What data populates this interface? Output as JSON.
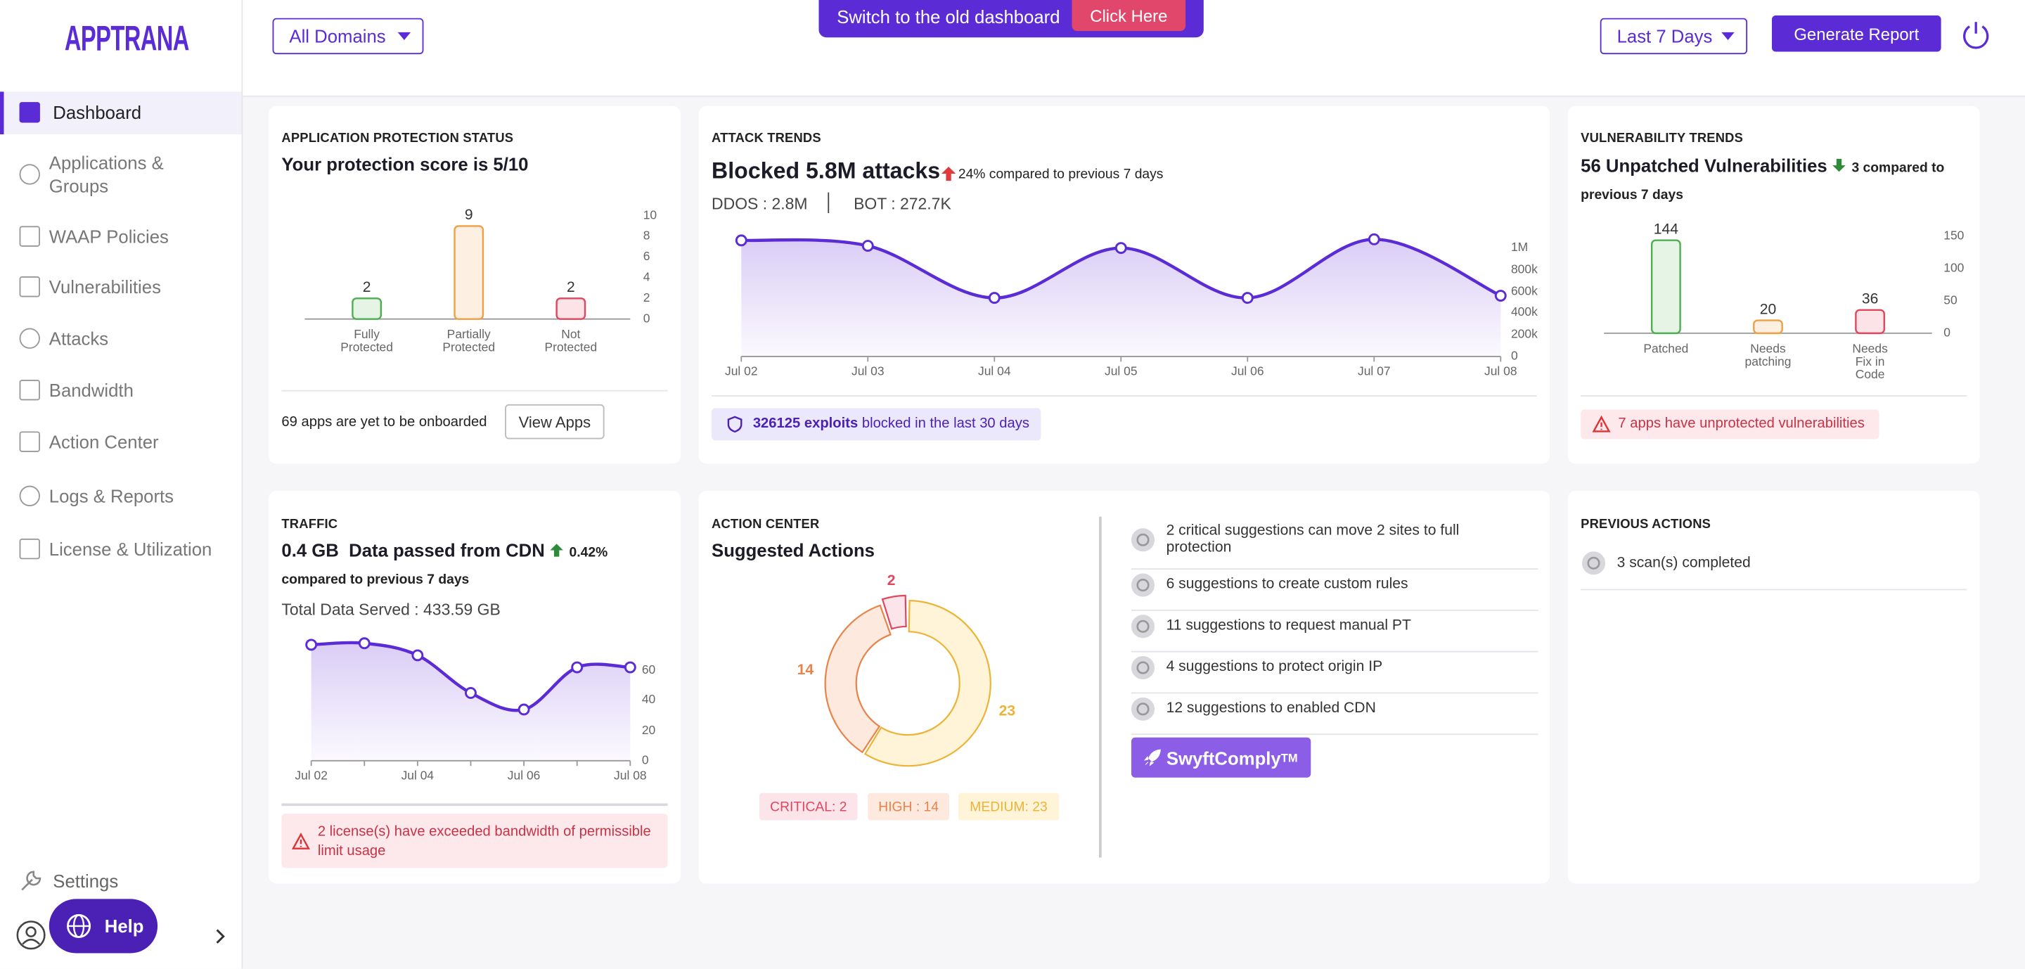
{
  "sidebar": {
    "logo": "APPTRANA",
    "nav": [
      "Dashboard",
      "Applications & Groups",
      "WAAP Policies",
      "Vulnerabilities",
      "Attacks",
      "Bandwidth",
      "Action Center",
      "Logs & Reports",
      "License & Utilization"
    ],
    "settings": "Settings",
    "help": "Help"
  },
  "header": {
    "domain_filter": "All Domains",
    "banner": "Switch to the old dashboard",
    "banner_button": "Click Here",
    "date_filter": "Last 7 Days",
    "report_button": "Generate Report"
  },
  "protection": {
    "label": "APPLICATION PROTECTION STATUS",
    "title": "Your protection score is 5/10",
    "chart": {
      "type": "bar",
      "categories": [
        "Fully Protected",
        "Partially Protected",
        "Not Protected"
      ],
      "values": [
        2,
        9,
        2
      ],
      "colors": [
        "#4caf50",
        "#f0a042",
        "#e0475f"
      ],
      "fill_colors": [
        "#e6f4e6",
        "#fdf0e2",
        "#fbe3e7"
      ],
      "ylim": [
        0,
        10
      ],
      "yticks": [
        0,
        2,
        4,
        6,
        8,
        10
      ]
    },
    "onboard_note": "69 apps are yet to be onboarded",
    "view_button": "View Apps"
  },
  "attacks": {
    "label": "ATTACK TRENDS",
    "title": "Blocked 5.8M attacks",
    "delta": "24% compared to previous 7 days",
    "ddos": "DDOS : 2.8M",
    "bot": "BOT : 272.7K",
    "chart": {
      "type": "line",
      "categories": [
        "Jul 02",
        "Jul 03",
        "Jul 04",
        "Jul 05",
        "Jul 06",
        "Jul 07",
        "Jul 08"
      ],
      "values": [
        1070000,
        1020000,
        540000,
        1000000,
        540000,
        1080000,
        560000
      ],
      "color": "#5b2bd6",
      "ylim": [
        0,
        1150000
      ],
      "yticks": [
        0,
        {
          "value": 200000,
          "label": "200k"
        },
        {
          "value": 400000,
          "label": "400k"
        },
        {
          "value": 600000,
          "label": "600k"
        },
        {
          "value": 800000,
          "label": "800k"
        },
        {
          "value": 1000000,
          "label": "1M"
        }
      ]
    },
    "exploits_count": "326125 exploits",
    "exploits_note": "blocked in the last 30 days"
  },
  "vulnerabilities": {
    "label": "VULNERABILITY TRENDS",
    "title": "56 Unpatched Vulnerabilities",
    "delta": "3 compared to previous 7 days",
    "chart": {
      "type": "bar",
      "categories": [
        "Patched",
        "Needs patching",
        "Needs Fix in Code"
      ],
      "values": [
        144,
        20,
        36
      ],
      "colors": [
        "#4caf50",
        "#f0a042",
        "#e0475f"
      ],
      "fill_colors": [
        "#e6f4e6",
        "#fdf0e2",
        "#fbe3e7"
      ],
      "ylim": [
        0,
        160
      ],
      "yticks": [
        0,
        50,
        100,
        150
      ]
    },
    "alert": "7 apps have unprotected vulnerabilities"
  },
  "traffic": {
    "label": "TRAFFIC",
    "title": "0.4 GB  Data passed from CDN",
    "delta": "0.42% compared to previous 7 days",
    "total": "Total Data Served : 433.59 GB",
    "chart": {
      "type": "line",
      "categories": [
        "Jul 02",
        null,
        "Jul 04",
        null,
        "Jul 06",
        null,
        "Jul 08"
      ],
      "values": [
        77,
        78,
        70,
        45,
        34,
        62,
        62
      ],
      "color": "#5b2bd6",
      "ylim": [
        0,
        80
      ],
      "yticks": [
        0,
        20,
        40,
        60
      ]
    },
    "alert": "2 license(s) have exceeded bandwidth of permissible limit usage"
  },
  "action_center": {
    "label": "ACTION CENTER",
    "title": "Suggested Actions",
    "chart": {
      "type": "donut",
      "categories": [
        "CRITICAL",
        "HIGH",
        "MEDIUM"
      ],
      "values": [
        2,
        14,
        23
      ],
      "value_labels": [
        "CRITICAL: 2",
        "HIGH : 14",
        "MEDIUM: 23"
      ],
      "colors": [
        "#e0475f",
        "#e8834a",
        "#ecb437"
      ],
      "fill_colors": [
        "#fbe4ea",
        "#fde9dd",
        "#fff4d8"
      ]
    },
    "suggestions": [
      "2 critical suggestions can move 2 sites to full protection",
      "6 suggestions to create custom rules",
      "11 suggestions to request manual PT",
      "4 suggestions to protect origin IP",
      "12 suggestions to enabled CDN"
    ],
    "button": "SwyftComply",
    "button_mark": "TM"
  },
  "previous_actions": {
    "label": "PREVIOUS ACTIONS",
    "items": [
      "3 scan(s) completed"
    ]
  }
}
